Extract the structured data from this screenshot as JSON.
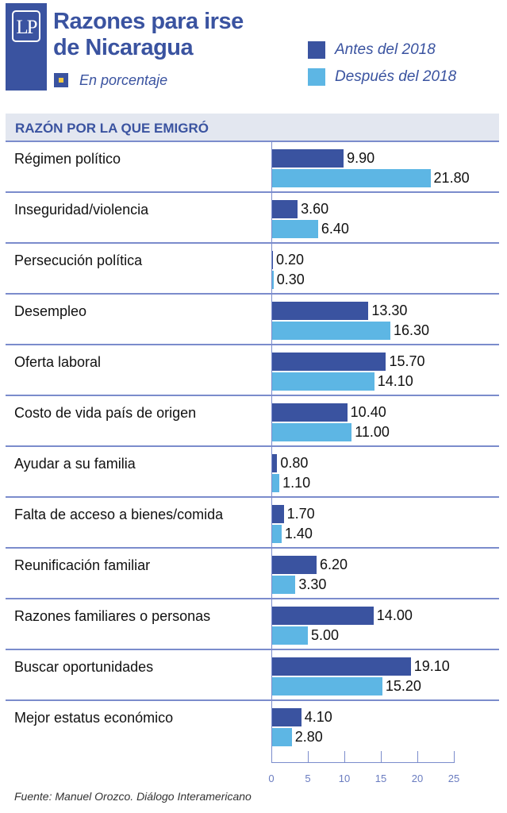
{
  "header": {
    "logo_text": "LP",
    "title_line1": "Razones para irse",
    "title_line2": "de Nicaragua",
    "subtitle": "En porcentaje"
  },
  "source": "Fuente: Manuel Orozco. Diálogo Interamericano",
  "chart_data": {
    "type": "bar",
    "orientation": "horizontal",
    "title": "Razones para irse de Nicaragua",
    "subtitle": "En porcentaje",
    "category_header": "RAZÓN POR LA QUE EMIGRÓ",
    "categories": [
      "Régimen político",
      "Inseguridad/violencia",
      "Persecución política",
      "Desempleo",
      "Oferta laboral",
      "Costo de vida país de origen",
      "Ayudar a su familia",
      "Falta de acceso a bienes/comida",
      "Reunificación familiar",
      "Razones familiares o personas",
      "Buscar oportunidades",
      "Mejor estatus económico"
    ],
    "series": [
      {
        "name": "Antes del 2018",
        "color": "#3a53a0",
        "values": [
          9.9,
          3.6,
          0.2,
          13.3,
          15.7,
          10.4,
          0.8,
          1.7,
          6.2,
          14.0,
          19.1,
          4.1
        ],
        "labels": [
          "9.90",
          "3.60",
          "0.20",
          "13.30",
          "15.70",
          "10.40",
          "0.80",
          "1.70",
          "6.20",
          "14.00",
          "19.10",
          "4.10"
        ]
      },
      {
        "name": "Después del 2018",
        "color": "#5db6e4",
        "values": [
          21.8,
          6.4,
          0.3,
          16.3,
          14.1,
          11.0,
          1.1,
          1.4,
          3.3,
          5.0,
          15.2,
          2.8
        ],
        "labels": [
          "21.80",
          "6.40",
          "0.30",
          "16.30",
          "14.10",
          "11.00",
          "1.10",
          "1.40",
          "3.30",
          "5.00",
          "15.20",
          "2.80"
        ]
      }
    ],
    "xlim": [
      0,
      25
    ],
    "xticks": [
      "0",
      "5",
      "10",
      "15",
      "20",
      "25"
    ],
    "xtick_values": [
      0,
      5,
      10,
      15,
      20,
      25
    ],
    "legend_position": "top-right",
    "grid": false
  }
}
